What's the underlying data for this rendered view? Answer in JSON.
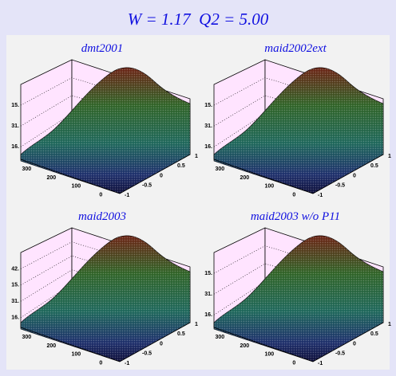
{
  "title": "W = 1.17  Q2 = 5.00",
  "panels": [
    {
      "title": "dmt2001",
      "z_labels": [
        "15.",
        "31.",
        "16."
      ],
      "x_labels": [
        "300",
        "200",
        "100",
        "0"
      ],
      "y_labels": [
        "-1",
        "-0.5",
        "0",
        "0.5",
        "1"
      ]
    },
    {
      "title": "maid2002ext",
      "z_labels": [
        "15.",
        "31.",
        "16."
      ],
      "x_labels": [
        "300",
        "200",
        "100",
        "0"
      ],
      "y_labels": [
        "-1",
        "-0.5",
        "0",
        "0.5",
        "1"
      ]
    },
    {
      "title": "maid2003",
      "z_labels": [
        "42.",
        "15.",
        "31.",
        "16."
      ],
      "x_labels": [
        "300",
        "200",
        "100",
        "0"
      ],
      "y_labels": [
        "-1",
        "-0.5",
        "0",
        "0.5",
        "1"
      ]
    },
    {
      "title": "maid2003 w/o P11",
      "z_labels": [
        "15.",
        "31.",
        "16."
      ],
      "x_labels": [
        "300",
        "200",
        "100",
        "0"
      ],
      "y_labels": [
        "-1",
        "-0.5",
        "0",
        "0.5",
        "1"
      ]
    }
  ]
}
